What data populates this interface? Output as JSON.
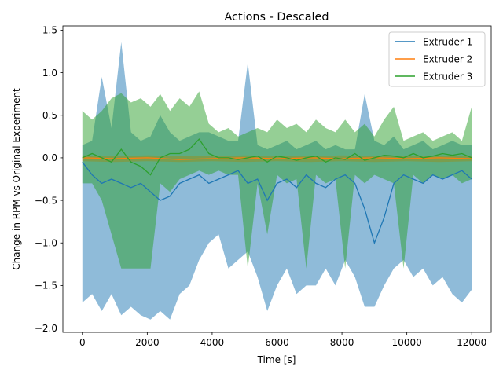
{
  "chart_data": {
    "type": "line",
    "title": "Actions - Descaled",
    "xlabel": "Time [s]",
    "ylabel": "Change in RPM vs Original Experiment",
    "xlim": [
      -600,
      12600
    ],
    "ylim": [
      -2.05,
      1.55
    ],
    "xticks": [
      0,
      2000,
      4000,
      6000,
      8000,
      10000,
      12000
    ],
    "yticks": [
      -2.0,
      -1.5,
      -1.0,
      -0.5,
      0.0,
      0.5,
      1.0,
      1.5
    ],
    "xtick_labels": [
      "0",
      "2000",
      "4000",
      "6000",
      "8000",
      "10000",
      "12000"
    ],
    "ytick_labels": [
      "−2.0",
      "−1.5",
      "−1.0",
      "−0.5",
      "0.0",
      "0.5",
      "1.0",
      "1.5"
    ],
    "grid": false,
    "legend_position": "top-right",
    "series": [
      {
        "name": "Extruder 1",
        "color": "#1f77b4",
        "x": [
          0,
          300,
          600,
          900,
          1200,
          1500,
          1800,
          2100,
          2400,
          2700,
          3000,
          3300,
          3600,
          3900,
          4200,
          4500,
          4800,
          5100,
          5400,
          5700,
          6000,
          6300,
          6600,
          6900,
          7200,
          7500,
          7800,
          8100,
          8400,
          8700,
          9000,
          9300,
          9600,
          9900,
          10200,
          10500,
          10800,
          11100,
          11400,
          11700,
          12000
        ],
        "values": [
          -0.05,
          -0.2,
          -0.3,
          -0.25,
          -0.3,
          -0.35,
          -0.3,
          -0.4,
          -0.5,
          -0.45,
          -0.3,
          -0.25,
          -0.2,
          -0.3,
          -0.25,
          -0.2,
          -0.15,
          -0.3,
          -0.25,
          -0.5,
          -0.3,
          -0.25,
          -0.35,
          -0.2,
          -0.3,
          -0.35,
          -0.25,
          -0.2,
          -0.3,
          -0.6,
          -1.0,
          -0.7,
          -0.3,
          -0.2,
          -0.25,
          -0.3,
          -0.2,
          -0.25,
          -0.2,
          -0.15,
          -0.25
        ],
        "upper": [
          0.15,
          0.2,
          0.95,
          0.35,
          1.36,
          0.3,
          0.2,
          0.25,
          0.5,
          0.3,
          0.2,
          0.25,
          0.3,
          0.3,
          0.25,
          0.2,
          0.2,
          1.12,
          0.15,
          0.1,
          0.15,
          0.2,
          0.1,
          0.15,
          0.2,
          0.1,
          0.15,
          0.1,
          0.1,
          0.75,
          0.2,
          0.15,
          0.25,
          0.1,
          0.15,
          0.2,
          0.1,
          0.15,
          0.2,
          0.15,
          0.15
        ],
        "lower": [
          -1.7,
          -1.6,
          -1.8,
          -1.6,
          -1.85,
          -1.75,
          -1.85,
          -1.9,
          -1.8,
          -1.9,
          -1.6,
          -1.5,
          -1.2,
          -1.0,
          -0.9,
          -1.3,
          -1.2,
          -1.1,
          -1.4,
          -1.8,
          -1.5,
          -1.3,
          -1.6,
          -1.5,
          -1.5,
          -1.3,
          -1.5,
          -1.2,
          -1.4,
          -1.75,
          -1.75,
          -1.5,
          -1.3,
          -1.2,
          -1.4,
          -1.3,
          -1.5,
          -1.4,
          -1.6,
          -1.7,
          -1.55
        ]
      },
      {
        "name": "Extruder 2",
        "color": "#ff7f0e",
        "x": [
          0,
          1000,
          2000,
          3000,
          4000,
          5000,
          6000,
          7000,
          8000,
          9000,
          10000,
          11000,
          12000
        ],
        "values": [
          0.0,
          -0.01,
          0.0,
          -0.02,
          -0.01,
          0.0,
          -0.01,
          0.0,
          -0.01,
          0.0,
          -0.01,
          0.0,
          -0.01
        ],
        "upper": [
          0.03,
          0.02,
          0.03,
          0.02,
          0.02,
          0.03,
          0.02,
          0.02,
          0.03,
          0.02,
          0.02,
          0.03,
          0.02
        ],
        "lower": [
          -0.04,
          -0.05,
          -0.04,
          -0.05,
          -0.04,
          -0.05,
          -0.04,
          -0.05,
          -0.04,
          -0.05,
          -0.04,
          -0.05,
          -0.04
        ]
      },
      {
        "name": "Extruder 3",
        "color": "#2ca02c",
        "x": [
          0,
          300,
          600,
          900,
          1200,
          1500,
          1800,
          2100,
          2400,
          2700,
          3000,
          3300,
          3600,
          3900,
          4200,
          4500,
          4800,
          5100,
          5400,
          5700,
          6000,
          6300,
          6600,
          6900,
          7200,
          7500,
          7800,
          8100,
          8400,
          8700,
          9000,
          9300,
          9600,
          9900,
          10200,
          10500,
          10800,
          11100,
          11400,
          11700,
          12000
        ],
        "values": [
          0.0,
          0.05,
          0.0,
          -0.05,
          0.1,
          -0.05,
          -0.1,
          -0.2,
          0.0,
          0.05,
          0.05,
          0.1,
          0.22,
          0.05,
          0.0,
          0.0,
          -0.02,
          0.0,
          0.02,
          -0.05,
          0.02,
          0.0,
          -0.03,
          0.0,
          0.02,
          -0.05,
          0.0,
          -0.02,
          0.05,
          -0.03,
          0.0,
          0.03,
          0.02,
          0.0,
          0.05,
          0.0,
          0.02,
          0.05,
          0.03,
          0.05,
          0.0
        ],
        "upper": [
          0.55,
          0.45,
          0.55,
          0.7,
          0.76,
          0.65,
          0.7,
          0.6,
          0.75,
          0.55,
          0.7,
          0.6,
          0.78,
          0.4,
          0.3,
          0.35,
          0.25,
          0.3,
          0.35,
          0.3,
          0.45,
          0.35,
          0.4,
          0.3,
          0.45,
          0.35,
          0.3,
          0.45,
          0.3,
          0.4,
          0.25,
          0.45,
          0.6,
          0.2,
          0.25,
          0.3,
          0.2,
          0.25,
          0.3,
          0.2,
          0.6
        ],
        "lower": [
          -0.3,
          -0.3,
          -0.5,
          -0.9,
          -1.3,
          -1.3,
          -1.3,
          -1.3,
          -0.3,
          -0.4,
          -0.25,
          -0.2,
          -0.15,
          -0.2,
          -0.15,
          -0.2,
          -0.2,
          -1.3,
          -0.3,
          -0.9,
          -0.2,
          -0.3,
          -0.25,
          -1.3,
          -0.2,
          -0.3,
          -0.25,
          -1.3,
          -0.2,
          -0.3,
          -0.2,
          -0.25,
          -0.3,
          -1.3,
          -0.2,
          -0.3,
          -0.2,
          -0.25,
          -0.2,
          -0.3,
          -0.25
        ]
      }
    ]
  }
}
